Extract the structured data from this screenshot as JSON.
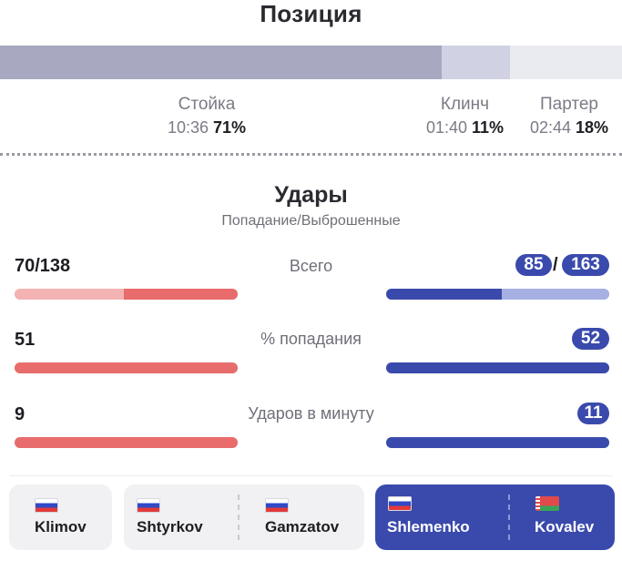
{
  "position": {
    "title": "Позиция",
    "segments": [
      {
        "label": "Стойка",
        "time": "10:36",
        "percent": "71%",
        "share": 0.71,
        "color": "#a8a8c0"
      },
      {
        "label": "Клинч",
        "time": "01:40",
        "percent": "11%",
        "share": 0.11,
        "color": "#d0d1e2"
      },
      {
        "label": "Партер",
        "time": "02:44",
        "percent": "18%",
        "share": 0.18,
        "color": "#eaeaf1"
      }
    ]
  },
  "strikes": {
    "title": "Удары",
    "subtitle": "Попадание/Выброшенные",
    "rows": [
      {
        "label": "Всего",
        "left_value": "70/138",
        "right_landed": "85",
        "right_slash": "/",
        "right_thrown": "163",
        "left_fill": 0.51,
        "right_fill": 0.52
      },
      {
        "label": "% попадания",
        "left_value": "51",
        "right_value": "52",
        "left_fill": 1.0,
        "right_fill": 1.0
      },
      {
        "label": "Ударов в минуту",
        "left_value": "9",
        "right_value": "11",
        "left_fill": 1.0,
        "right_fill": 1.0
      }
    ],
    "colors": {
      "red": "#e86c6c",
      "red_light": "#f4b3b3",
      "blue": "#3a4aac",
      "blue_light": "#a7b0e2"
    }
  },
  "fights": [
    {
      "fighters": [
        {
          "name": "Klimov",
          "flag": "russia-flag-icon"
        }
      ],
      "active": false
    },
    {
      "fighters": [
        {
          "name": "Shtyrkov",
          "flag": "russia-flag-icon"
        },
        {
          "name": "Gamzatov",
          "flag": "russia-flag-icon"
        }
      ],
      "active": false
    },
    {
      "fighters": [
        {
          "name": "Shlemenko",
          "flag": "russia-flag-icon"
        },
        {
          "name": "Kovalev",
          "flag": "belarus-flag-icon"
        }
      ],
      "active": true
    }
  ]
}
